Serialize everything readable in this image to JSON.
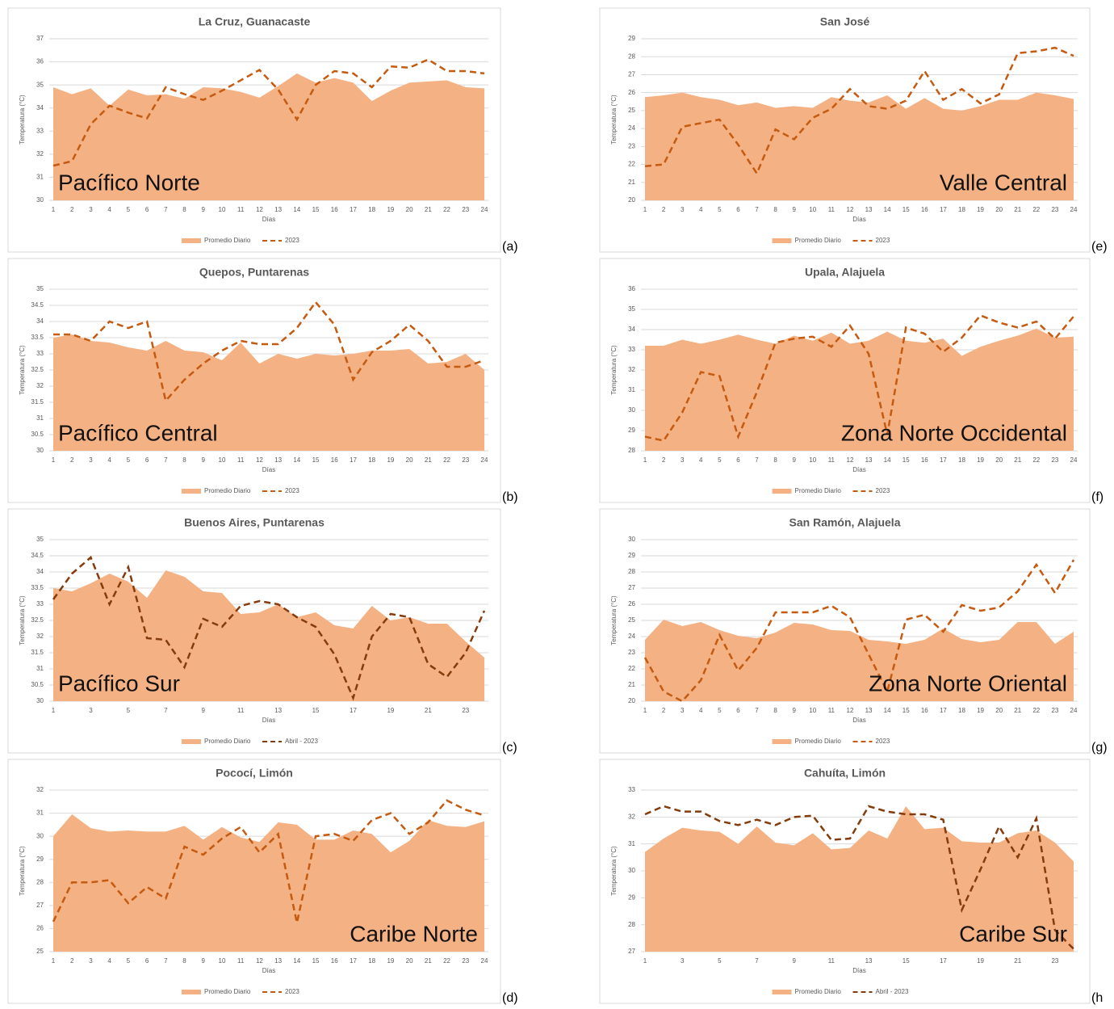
{
  "chart_data": [
    {
      "type": "area-line",
      "title": "La Cruz, Guanacaste",
      "annotation": "Pacífico Norte",
      "annotation_corner": "left",
      "panel_label": "(a)",
      "xlabel": "Días",
      "ylabel": "Temperatura (°C)",
      "categories": [
        "1",
        "2",
        "3",
        "4",
        "5",
        "6",
        "7",
        "8",
        "9",
        "10",
        "11",
        "12",
        "13",
        "14",
        "15",
        "16",
        "17",
        "18",
        "19",
        "20",
        "21",
        "22",
        "23",
        "24"
      ],
      "ylim": [
        30,
        37
      ],
      "yticks": [
        30,
        31,
        32,
        33,
        34,
        35,
        36,
        37
      ],
      "grid": true,
      "series": [
        {
          "name": "Promedio Diario",
          "kind": "area",
          "color": "#f4b183",
          "values": [
            34.9,
            34.6,
            34.85,
            34.1,
            34.8,
            34.55,
            34.6,
            34.4,
            34.9,
            34.85,
            34.7,
            34.45,
            34.95,
            35.5,
            35.1,
            35.3,
            35.1,
            34.3,
            34.75,
            35.1,
            35.15,
            35.2,
            34.9,
            34.85
          ]
        },
        {
          "name": "2023",
          "kind": "dashed",
          "color": "#c55a11",
          "values": [
            31.5,
            31.7,
            33.3,
            34.1,
            33.8,
            33.55,
            34.9,
            34.6,
            34.35,
            34.75,
            35.2,
            35.65,
            34.8,
            33.5,
            35.0,
            35.6,
            35.5,
            34.9,
            35.8,
            35.75,
            36.1,
            35.6,
            35.6,
            35.5
          ]
        }
      ]
    },
    {
      "type": "area-line",
      "title": "Quepos, Puntarenas",
      "annotation": "Pacífico Central",
      "annotation_corner": "left",
      "panel_label": "(b)",
      "xlabel": "Días",
      "ylabel": "Temperatura (°C)",
      "categories": [
        "1",
        "2",
        "3",
        "4",
        "5",
        "6",
        "7",
        "8",
        "9",
        "10",
        "11",
        "12",
        "13",
        "14",
        "15",
        "16",
        "17",
        "18",
        "19",
        "20",
        "21",
        "22",
        "23",
        "24"
      ],
      "ylim": [
        30,
        35
      ],
      "yticks": [
        30,
        30.5,
        31,
        31.5,
        32,
        32.5,
        33,
        33.5,
        34,
        34.5,
        35
      ],
      "grid": true,
      "series": [
        {
          "name": "Promedio Diario",
          "kind": "area",
          "color": "#f4b183",
          "values": [
            33.5,
            33.6,
            33.4,
            33.35,
            33.2,
            33.1,
            33.4,
            33.1,
            33.05,
            32.8,
            33.35,
            32.7,
            33.0,
            32.85,
            33.0,
            32.95,
            33.0,
            33.1,
            33.1,
            33.15,
            32.7,
            32.75,
            33.0,
            32.5
          ]
        },
        {
          "name": "2023",
          "kind": "dashed",
          "color": "#c55a11",
          "values": [
            33.6,
            33.6,
            33.4,
            34.0,
            33.8,
            34.0,
            31.55,
            32.2,
            32.7,
            33.1,
            33.4,
            33.3,
            33.3,
            33.8,
            34.6,
            33.9,
            32.2,
            33.05,
            33.4,
            33.9,
            33.4,
            32.6,
            32.6,
            32.8
          ]
        }
      ]
    },
    {
      "type": "area-line",
      "title": "Buenos Aires, Puntarenas",
      "annotation": "Pacífico Sur",
      "annotation_corner": "left",
      "panel_label": "(c)",
      "xlabel": "Días",
      "ylabel": "Temperatura (°C)",
      "categories": [
        "1",
        null,
        "3",
        null,
        "5",
        null,
        "7",
        null,
        "9",
        null,
        "11",
        null,
        "13",
        null,
        "15",
        null,
        "17",
        null,
        "19",
        null,
        "21",
        null,
        "23",
        null
      ],
      "ylim": [
        30,
        35
      ],
      "yticks": [
        30,
        30.5,
        31,
        31.5,
        32,
        32.5,
        33,
        33.5,
        34,
        34.5,
        35
      ],
      "grid": true,
      "series": [
        {
          "name": "Promedio Diario",
          "kind": "area",
          "color": "#f4b183",
          "values": [
            33.5,
            33.4,
            33.65,
            33.95,
            33.7,
            33.2,
            34.05,
            33.85,
            33.4,
            33.35,
            32.7,
            32.75,
            33.0,
            32.6,
            32.75,
            32.35,
            32.25,
            32.95,
            32.5,
            32.6,
            32.4,
            32.4,
            31.85,
            31.35
          ]
        },
        {
          "name": "Abril - 2023",
          "kind": "dashed",
          "color": "#843c0c",
          "values": [
            33.15,
            33.95,
            34.45,
            33.0,
            34.15,
            31.95,
            31.9,
            31.05,
            32.55,
            32.3,
            32.95,
            33.1,
            33.0,
            32.6,
            32.3,
            31.45,
            30.1,
            32.0,
            32.7,
            32.6,
            31.15,
            30.75,
            31.5,
            32.8
          ]
        }
      ]
    },
    {
      "type": "area-line",
      "title": "Pococí, Limón",
      "annotation": "Caribe Norte",
      "annotation_corner": "right",
      "panel_label": "(d)",
      "xlabel": "Días",
      "ylabel": "Temperatura (°C)",
      "categories": [
        "1",
        "2",
        "3",
        "4",
        "5",
        "6",
        "7",
        "8",
        "9",
        "10",
        "11",
        "12",
        "13",
        "14",
        "15",
        "16",
        "17",
        "18",
        "19",
        "20",
        "21",
        "22",
        "23",
        "24"
      ],
      "ylim": [
        25,
        32
      ],
      "yticks": [
        25,
        26,
        27,
        28,
        29,
        30,
        31,
        32
      ],
      "grid": true,
      "series": [
        {
          "name": "Promedio Diario",
          "kind": "area",
          "color": "#f4b183",
          "values": [
            30.0,
            30.95,
            30.35,
            30.2,
            30.25,
            30.2,
            30.2,
            30.45,
            29.85,
            30.4,
            29.95,
            29.75,
            30.6,
            30.5,
            29.85,
            29.85,
            30.25,
            30.1,
            29.3,
            29.8,
            30.7,
            30.45,
            30.4,
            30.65
          ]
        },
        {
          "name": "2023",
          "kind": "dashed",
          "color": "#c55a11",
          "values": [
            26.3,
            28.0,
            28.0,
            28.1,
            27.1,
            27.8,
            27.3,
            29.55,
            29.2,
            29.9,
            30.4,
            29.3,
            30.1,
            26.25,
            30.0,
            30.1,
            29.8,
            30.7,
            31.0,
            30.1,
            30.6,
            31.55,
            31.15,
            30.9
          ]
        }
      ]
    },
    {
      "type": "area-line",
      "title": "San José",
      "annotation": "Valle Central",
      "annotation_corner": "right",
      "panel_label": "(e)",
      "xlabel": "Días",
      "ylabel": "Temperatura (°C)",
      "categories": [
        "1",
        "2",
        "3",
        "4",
        "5",
        "6",
        "7",
        "8",
        "9",
        "10",
        "11",
        "12",
        "13",
        "14",
        "15",
        "16",
        "17",
        "18",
        "19",
        "20",
        "21",
        "22",
        "23",
        "24"
      ],
      "ylim": [
        20,
        29
      ],
      "yticks": [
        20,
        21,
        22,
        23,
        24,
        25,
        26,
        27,
        28,
        29
      ],
      "grid": true,
      "series": [
        {
          "name": "Promedio Diario",
          "kind": "area",
          "color": "#f4b183",
          "values": [
            25.75,
            25.85,
            26.0,
            25.75,
            25.6,
            25.3,
            25.45,
            25.15,
            25.25,
            25.15,
            25.75,
            25.55,
            25.45,
            25.85,
            25.1,
            25.7,
            25.1,
            25.0,
            25.25,
            25.6,
            25.6,
            26.0,
            25.85,
            25.65
          ]
        },
        {
          "name": "2023",
          "kind": "dashed",
          "color": "#c55a11",
          "values": [
            21.9,
            22.0,
            24.1,
            24.3,
            24.5,
            23.1,
            21.5,
            23.95,
            23.4,
            24.6,
            25.1,
            26.2,
            25.25,
            25.1,
            25.55,
            27.2,
            25.6,
            26.2,
            25.4,
            25.9,
            28.2,
            28.3,
            28.5,
            28.05
          ]
        }
      ]
    },
    {
      "type": "area-line",
      "title": "Upala, Alajuela",
      "annotation": "Zona Norte Occidental",
      "annotation_corner": "right",
      "panel_label": "(f)",
      "xlabel": "Días",
      "ylabel": "Temperatura (°C)",
      "categories": [
        "1",
        "2",
        "3",
        "4",
        "5",
        "6",
        "7",
        "8",
        "9",
        "10",
        "11",
        "12",
        "13",
        "14",
        "15",
        "16",
        "17",
        "18",
        "19",
        "20",
        "21",
        "22",
        "23",
        "24"
      ],
      "ylim": [
        28,
        36
      ],
      "yticks": [
        28,
        29,
        30,
        31,
        32,
        33,
        34,
        35,
        36
      ],
      "grid": true,
      "series": [
        {
          "name": "Promedio Diario",
          "kind": "area",
          "color": "#f4b183",
          "values": [
            33.2,
            33.2,
            33.5,
            33.3,
            33.5,
            33.75,
            33.5,
            33.3,
            33.7,
            33.45,
            33.85,
            33.3,
            33.45,
            33.9,
            33.45,
            33.35,
            33.55,
            32.7,
            33.15,
            33.45,
            33.7,
            34.05,
            33.6,
            33.65
          ]
        },
        {
          "name": "2023",
          "kind": "dashed",
          "color": "#c55a11",
          "values": [
            28.7,
            28.5,
            29.9,
            31.9,
            31.7,
            28.7,
            30.9,
            33.35,
            33.55,
            33.65,
            33.15,
            34.2,
            32.8,
            28.8,
            34.1,
            33.8,
            32.9,
            33.6,
            34.7,
            34.35,
            34.1,
            34.4,
            33.55,
            34.65
          ]
        }
      ]
    },
    {
      "type": "area-line",
      "title": "San Ramón, Alajuela",
      "annotation": "Zona Norte Oriental",
      "annotation_corner": "right",
      "panel_label": "(g)",
      "xlabel": "Días",
      "ylabel": "Temperatura (°C)",
      "categories": [
        "1",
        "2",
        "3",
        "4",
        "5",
        "6",
        "7",
        "8",
        "9",
        "10",
        "11",
        "12",
        "13",
        "14",
        "15",
        "16",
        "17",
        "18",
        "19",
        "20",
        "21",
        "22",
        "23",
        "24"
      ],
      "ylim": [
        20,
        30
      ],
      "yticks": [
        20,
        21,
        22,
        23,
        24,
        25,
        26,
        27,
        28,
        29,
        30
      ],
      "grid": true,
      "series": [
        {
          "name": "Promedio Diario",
          "kind": "area",
          "color": "#f4b183",
          "values": [
            23.8,
            25.05,
            24.65,
            24.9,
            24.4,
            24.05,
            23.9,
            24.25,
            24.85,
            24.75,
            24.4,
            24.35,
            23.8,
            23.7,
            23.55,
            23.8,
            24.5,
            23.85,
            23.65,
            23.8,
            24.9,
            24.9,
            23.55,
            24.3
          ]
        },
        {
          "name": "2023",
          "kind": "dashed",
          "color": "#c55a11",
          "values": [
            22.7,
            20.6,
            20.0,
            21.3,
            24.1,
            21.9,
            23.3,
            25.5,
            25.5,
            25.5,
            25.9,
            25.2,
            22.9,
            20.6,
            25.05,
            25.35,
            24.3,
            25.95,
            25.6,
            25.8,
            26.8,
            28.45,
            26.7,
            28.75
          ]
        }
      ]
    },
    {
      "type": "area-line",
      "title": "Cahuíta, Limón",
      "annotation": "Caribe Sur",
      "annotation_corner": "right",
      "panel_label": "(h",
      "xlabel": "Días",
      "ylabel": "Temperatura (°C)",
      "categories": [
        "1",
        null,
        "3",
        null,
        "5",
        null,
        "7",
        null,
        "9",
        null,
        "11",
        null,
        "13",
        null,
        "15",
        null,
        "17",
        null,
        "19",
        null,
        "21",
        null,
        "23",
        null
      ],
      "ylim": [
        27,
        33
      ],
      "yticks": [
        27,
        28,
        29,
        30,
        31,
        32,
        33
      ],
      "grid": true,
      "series": [
        {
          "name": "Promedio Diario",
          "kind": "area",
          "color": "#f4b183",
          "values": [
            30.7,
            31.2,
            31.6,
            31.5,
            31.45,
            31.0,
            31.65,
            31.05,
            30.95,
            31.4,
            30.8,
            30.85,
            31.5,
            31.2,
            32.4,
            31.55,
            31.6,
            31.1,
            31.05,
            31.05,
            31.4,
            31.5,
            31.05,
            30.35
          ]
        },
        {
          "name": "Abril - 2023",
          "kind": "dashed",
          "color": "#843c0c",
          "values": [
            32.1,
            32.4,
            32.2,
            32.2,
            31.85,
            31.7,
            31.9,
            31.7,
            32.0,
            32.05,
            31.15,
            31.2,
            32.4,
            32.2,
            32.1,
            32.1,
            31.9,
            28.55,
            30.05,
            31.65,
            30.5,
            31.95,
            27.8,
            27.1
          ]
        }
      ]
    }
  ]
}
